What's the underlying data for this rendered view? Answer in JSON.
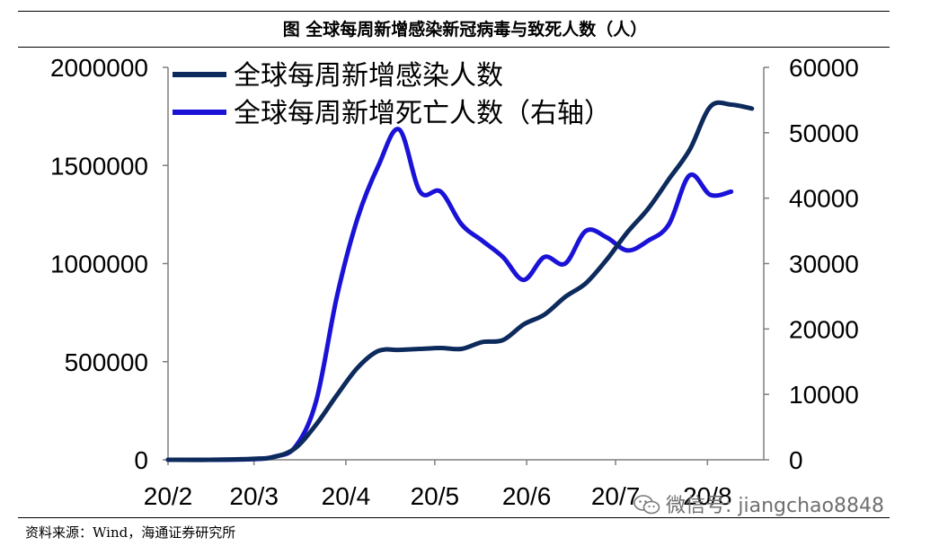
{
  "figure_title": "图 全球每周新增感染新冠病毒与致死人数（人）",
  "source_text": "资料来源：Wind，海通证券研究所",
  "watermark_text": "微信号: jiangchao8848",
  "watermark_icon": "wechat-icon",
  "colors": {
    "infections": "#0d2a5c",
    "deaths": "#1a12d6",
    "axis": "#7f7f7f",
    "text": "#000000"
  },
  "chart_data": {
    "type": "line",
    "title": "",
    "xlabel": "",
    "ylabel": "",
    "y2label": "",
    "x_ticks": [
      "20/2",
      "20/3",
      "20/4",
      "20/5",
      "20/6",
      "20/7",
      "20/8"
    ],
    "x_range": [
      "2020-02-01",
      "2020-08-20"
    ],
    "ylim": [
      0,
      2000000
    ],
    "y_ticks": [
      0,
      500000,
      1000000,
      1500000,
      2000000
    ],
    "y2lim": [
      0,
      60000
    ],
    "y2_ticks": [
      0,
      10000,
      20000,
      30000,
      40000,
      50000,
      60000
    ],
    "grid": false,
    "legend": "top-left",
    "series": [
      {
        "name": "全球每周新增感染人数",
        "axis": "left",
        "points": [
          [
            "2020-02-01",
            0
          ],
          [
            "2020-02-15",
            0
          ],
          [
            "2020-03-01",
            5000
          ],
          [
            "2020-03-08",
            15000
          ],
          [
            "2020-03-15",
            60000
          ],
          [
            "2020-03-22",
            180000
          ],
          [
            "2020-03-29",
            330000
          ],
          [
            "2020-04-05",
            470000
          ],
          [
            "2020-04-12",
            555000
          ],
          [
            "2020-04-19",
            560000
          ],
          [
            "2020-04-26",
            565000
          ],
          [
            "2020-05-03",
            570000
          ],
          [
            "2020-05-10",
            565000
          ],
          [
            "2020-05-17",
            600000
          ],
          [
            "2020-05-24",
            610000
          ],
          [
            "2020-05-31",
            690000
          ],
          [
            "2020-06-07",
            740000
          ],
          [
            "2020-06-14",
            830000
          ],
          [
            "2020-06-21",
            900000
          ],
          [
            "2020-06-28",
            1020000
          ],
          [
            "2020-07-05",
            1160000
          ],
          [
            "2020-07-12",
            1280000
          ],
          [
            "2020-07-19",
            1430000
          ],
          [
            "2020-07-26",
            1580000
          ],
          [
            "2020-08-02",
            1800000
          ],
          [
            "2020-08-09",
            1810000
          ],
          [
            "2020-08-16",
            1790000
          ]
        ]
      },
      {
        "name": "全球每周新增死亡人数（右轴）",
        "axis": "right",
        "points": [
          [
            "2020-02-01",
            0
          ],
          [
            "2020-02-15",
            0
          ],
          [
            "2020-03-01",
            100
          ],
          [
            "2020-03-08",
            500
          ],
          [
            "2020-03-15",
            2000
          ],
          [
            "2020-03-22",
            9000
          ],
          [
            "2020-03-29",
            25000
          ],
          [
            "2020-04-05",
            37000
          ],
          [
            "2020-04-12",
            45000
          ],
          [
            "2020-04-19",
            50500
          ],
          [
            "2020-04-26",
            41000
          ],
          [
            "2020-05-03",
            41000
          ],
          [
            "2020-05-10",
            36000
          ],
          [
            "2020-05-17",
            33500
          ],
          [
            "2020-05-24",
            31000
          ],
          [
            "2020-05-31",
            27500
          ],
          [
            "2020-06-07",
            31000
          ],
          [
            "2020-06-14",
            30000
          ],
          [
            "2020-06-21",
            35000
          ],
          [
            "2020-06-28",
            34000
          ],
          [
            "2020-07-05",
            32000
          ],
          [
            "2020-07-12",
            33500
          ],
          [
            "2020-07-19",
            36000
          ],
          [
            "2020-07-26",
            43500
          ],
          [
            "2020-08-02",
            40500
          ],
          [
            "2020-08-09",
            41000
          ]
        ]
      }
    ]
  }
}
